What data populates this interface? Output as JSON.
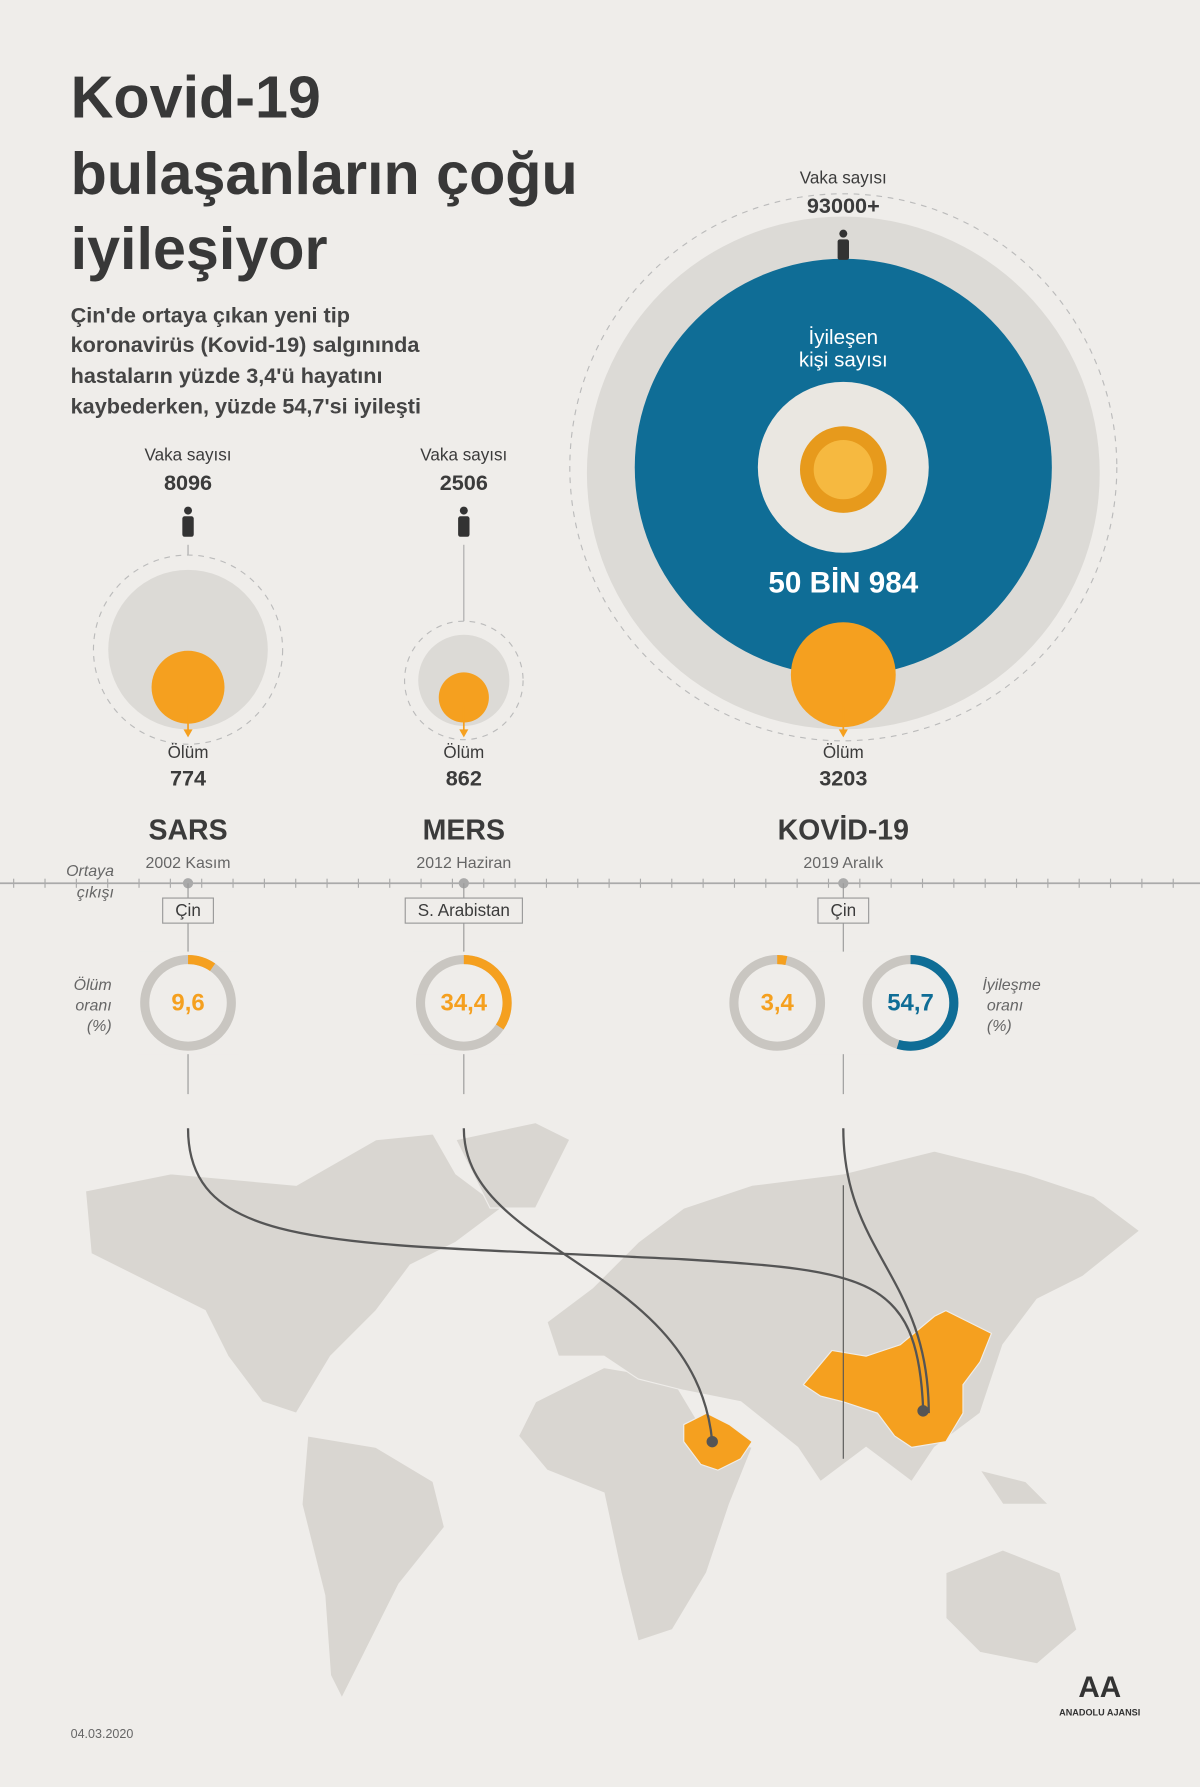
{
  "header": {
    "title_lines": [
      "Kovid-19",
      "bulaşanların çoğu",
      "iyileşiyor"
    ],
    "subtitle_lines": [
      "Çin'de ortaya çıkan yeni tip",
      "koronavirüs (Kovid-19) salgınında",
      "hastaların yüzde 3,4'ü hayatını",
      "kaybederken, yüzde 54,7'si iyileşti"
    ]
  },
  "labels": {
    "emergence": [
      "Ortaya",
      "çıkışı"
    ],
    "death_rate": [
      "Ölüm",
      "oranı",
      "(%)"
    ],
    "recovery_rate": [
      "İyileşme",
      "oranı",
      "(%)"
    ],
    "recovered": [
      "İyileşen",
      "kişi sayısı"
    ]
  },
  "diseases": [
    {
      "name": "SARS",
      "date": "2002 Kasım",
      "case_label": "Vaka sayısı",
      "cases": 8096,
      "death_label": "Ölüm",
      "deaths": 774,
      "origin": "Çin",
      "death_rate": {
        "value": 9.6,
        "label": "9,6"
      }
    },
    {
      "name": "MERS",
      "date": "2012 Haziran",
      "case_label": "Vaka sayısı",
      "cases": 2506,
      "death_label": "Ölüm",
      "deaths": 862,
      "origin": "S. Arabistan",
      "death_rate": {
        "value": 34.4,
        "label": "34,4"
      }
    },
    {
      "name": "KOVİD-19",
      "date": "2019 Aralık",
      "case_label": "Vaka sayısı",
      "cases": "93000+",
      "death_label": "Ölüm",
      "deaths": 3203,
      "origin": "Çin",
      "death_rate": {
        "value": 3.4,
        "label": "3,4"
      },
      "recovered": "50 BİN 984",
      "recovery_rate": {
        "value": 54.7,
        "label": "54,7"
      }
    }
  ],
  "footer": {
    "date": "04.03.2020",
    "logo_mark": "AA",
    "logo_text": "ANADOLU AJANSI"
  }
}
